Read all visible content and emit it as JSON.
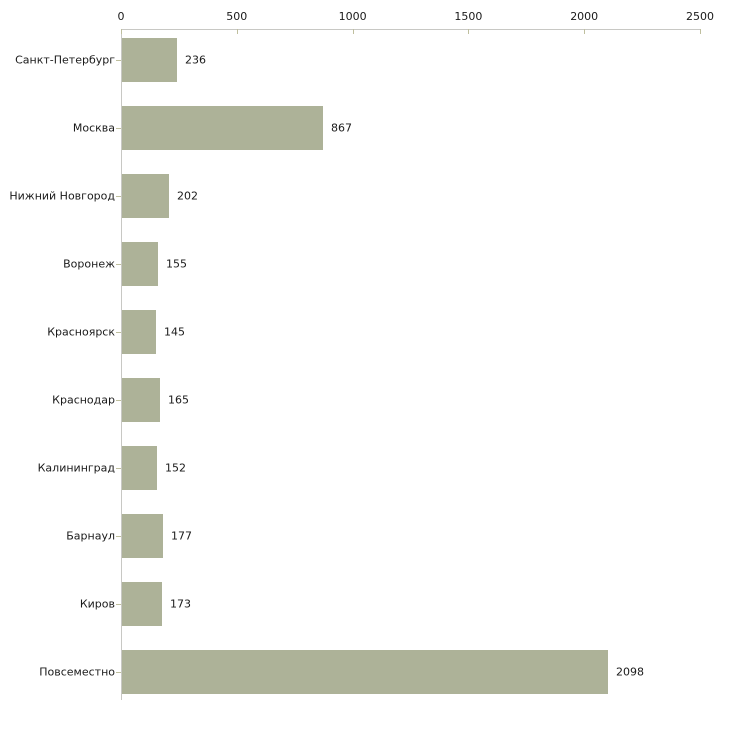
{
  "chart_data": {
    "type": "bar",
    "orientation": "horizontal",
    "title": "",
    "xlabel": "",
    "ylabel": "",
    "categories": [
      "Санкт-Петербург",
      "Москва",
      "Нижний Новгород",
      "Воронеж",
      "Красноярск",
      "Краснодар",
      "Калининград",
      "Барнаул",
      "Киров",
      "Повсеместно"
    ],
    "values": [
      236,
      867,
      202,
      155,
      145,
      165,
      152,
      177,
      173,
      2098
    ],
    "value_labels": [
      "236",
      "867",
      "202",
      "155",
      "145",
      "165",
      "152",
      "177",
      "173",
      "2098"
    ],
    "x_ticks": [
      0,
      500,
      1000,
      1500,
      2000,
      2500
    ],
    "x_tick_labels": [
      "0",
      "500",
      "1000",
      "1500",
      "2000",
      "2500"
    ],
    "xlim": [
      0,
      2500
    ],
    "grid": false,
    "legend": "none",
    "axis_position": "top",
    "colors": {
      "bar_fill": "#adb298",
      "axis_line": "#c8c8c4",
      "tick_mark": "#bfbf9e",
      "text": "#1a1a1a"
    }
  }
}
